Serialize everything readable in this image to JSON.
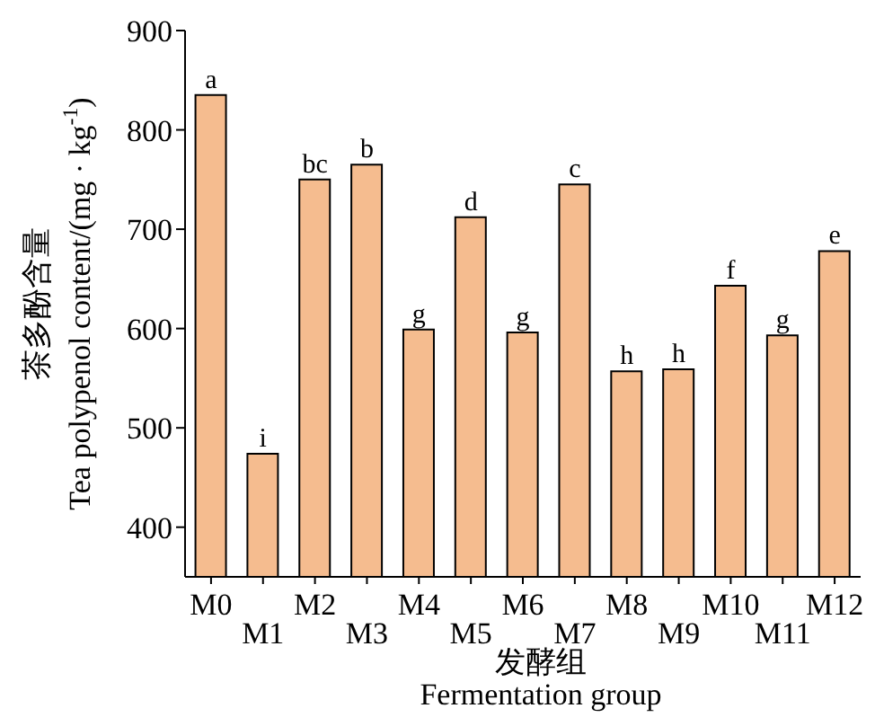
{
  "chart_data": {
    "type": "bar",
    "xlabel": "发酵组\nFermentation group",
    "ylabel": "茶多酚含量\nTea polypenol content/(mg · kg$^{-1}$)",
    "categories": [
      "M0",
      "M1",
      "M2",
      "M3",
      "M4",
      "M5",
      "M6",
      "M7",
      "M8",
      "M9",
      "M10",
      "M11",
      "M12"
    ],
    "values": [
      835,
      474,
      750,
      765,
      599,
      712,
      596,
      745,
      557,
      559,
      643,
      593,
      678
    ],
    "color": "#f5bc8f",
    "ylim": [
      350,
      900
    ],
    "yticks": [
      400,
      500,
      600,
      700,
      800,
      900
    ],
    "grid": false,
    "legend": false,
    "annotations": [
      {
        "text": "a",
        "x": "M0",
        "y": 835
      },
      {
        "text": "i",
        "x": "M1",
        "y": 474
      },
      {
        "text": "bc",
        "x": "M2",
        "y": 750
      },
      {
        "text": "b",
        "x": "M3",
        "y": 765
      },
      {
        "text": "g",
        "x": "M4",
        "y": 599
      },
      {
        "text": "d",
        "x": "M5",
        "y": 712
      },
      {
        "text": "g",
        "x": "M6",
        "y": 596
      },
      {
        "text": "c",
        "x": "M7",
        "y": 745
      },
      {
        "text": "h",
        "x": "M8",
        "y": 557
      },
      {
        "text": "h",
        "x": "M9",
        "y": 559
      },
      {
        "text": "f",
        "x": "M10",
        "y": 643
      },
      {
        "text": "g",
        "x": "M11",
        "y": 593
      },
      {
        "text": "e",
        "x": "M12",
        "y": 678
      }
    ]
  }
}
